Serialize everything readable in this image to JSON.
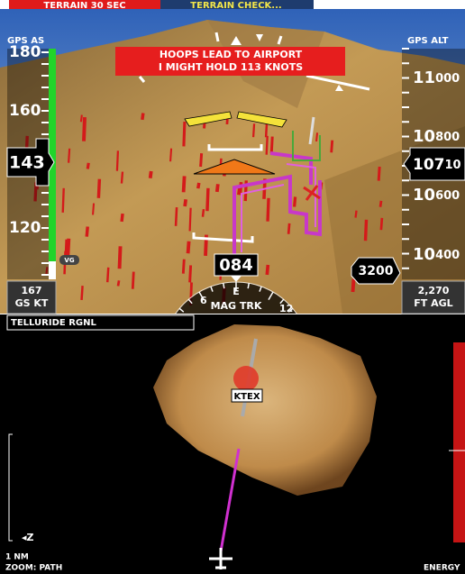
{
  "alerts": {
    "terrain_warning": "TERRAIN 30 SEC",
    "terrain_check": "TERRAIN CHECK..."
  },
  "pfd": {
    "airspeed_source": "GPS AS",
    "altitude_source": "GPS ALT",
    "message": [
      "HOOPS LEAD TO AIRPORT",
      "I MIGHT HOLD 113 KNOTS"
    ],
    "airspeed_tape": [
      "180",
      "160",
      "120"
    ],
    "airspeed": "143",
    "vg_label": "VG",
    "altitude_tape": [
      {
        "major": "11",
        "minor": "000"
      },
      {
        "major": "10",
        "minor": "800"
      },
      {
        "major": "10",
        "minor": "600"
      },
      {
        "major": "10",
        "minor": "400"
      }
    ],
    "altitude": {
      "major": "107",
      "minor": "10"
    },
    "vertical_speed": "3200",
    "heading": "084",
    "compass": {
      "left": "6",
      "center": "E",
      "mode": "MAG TRK",
      "right": "12"
    },
    "ground_speed": {
      "value": "167",
      "unit": "GS KT"
    },
    "agl": {
      "value": "2,270",
      "unit": "FT AGL"
    }
  },
  "map": {
    "destination": "TELLURIDE RGNL",
    "airport": "KTEX",
    "north": "◂Z",
    "scale": "1 NM",
    "zoom": "ZOOM: PATH",
    "energy": "ENERGY"
  }
}
